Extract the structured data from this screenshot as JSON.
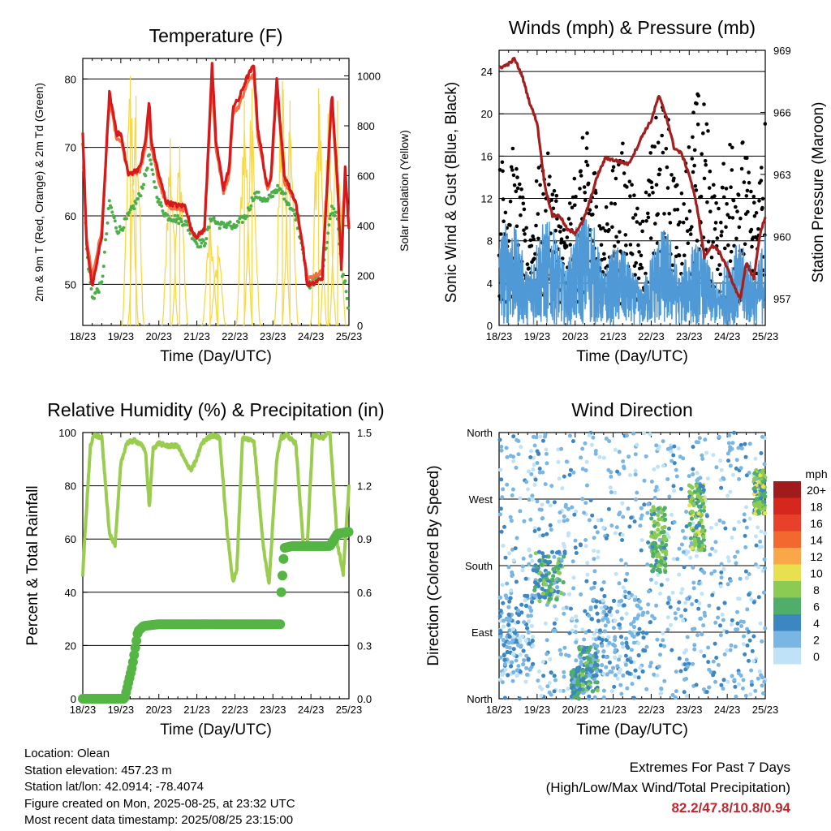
{
  "colors": {
    "temp_red": "#d7191c",
    "temp_orange": "#f46d43",
    "dewpoint_green": "#4daf4a",
    "solar_yellow": "#f7d84a",
    "wind_blue": "#4f9ad6",
    "pressure_maroon": "#a31f1f",
    "rh_green": "#9acd4f",
    "precip_green": "#55b544",
    "extremes_red": "#c0272d"
  },
  "x_ticks": [
    "18/23",
    "19/23",
    "20/23",
    "21/23",
    "22/23",
    "23/23",
    "24/23",
    "25/23"
  ],
  "panels": {
    "temperature": {
      "title": "Temperature (F)",
      "xlabel": "Time (Day/UTC)",
      "ylabel_left": "2m & 9m T (Red, Orange) & 2m Td (Green)",
      "ylabel_right": "Solar Insolation (Yellow)",
      "left_ticks": [
        "50",
        "60",
        "70",
        "80"
      ],
      "right_ticks": [
        "0",
        "200",
        "400",
        "600",
        "800",
        "1000"
      ]
    },
    "winds": {
      "title": "Winds (mph) & Pressure (mb)",
      "xlabel": "Time (Day/UTC)",
      "ylabel_left": "Sonic Wind & Gust (Blue, Black)",
      "ylabel_right": "Station Pressure (Maroon)",
      "left_ticks": [
        "0",
        "4",
        "8",
        "12",
        "16",
        "20",
        "24"
      ],
      "right_ticks": [
        "957",
        "960",
        "963",
        "966",
        "969"
      ]
    },
    "humidity": {
      "title": "Relative Humidity (%) & Precipitation (in)",
      "xlabel": "Time (Day/UTC)",
      "ylabel_left": "Percent & Total Rainfall",
      "left_ticks": [
        "0",
        "20",
        "40",
        "60",
        "80",
        "100"
      ],
      "right_ticks": [
        "0.0",
        "0.3",
        "0.6",
        "0.9",
        "1.2",
        "1.5"
      ]
    },
    "direction": {
      "title": "Wind Direction",
      "xlabel": "Time (Day/UTC)",
      "ylabel_left": "Direction (Colored By Speed)",
      "left_ticks": [
        "North",
        "East",
        "South",
        "West",
        "North"
      ],
      "legend_title": "mph",
      "legend_labels": [
        "20+",
        "18",
        "16",
        "14",
        "12",
        "10",
        "8",
        "6",
        "4",
        "2",
        "0"
      ],
      "legend_colors": [
        "#a11a1c",
        "#d7261e",
        "#e8402a",
        "#f2682f",
        "#f9a748",
        "#e9e04f",
        "#8ccb53",
        "#4fae6a",
        "#3c86c1",
        "#7ab6e3",
        "#bfe2f6"
      ]
    }
  },
  "info": {
    "location": "Location: Olean",
    "elevation": "Station elevation: 457.23 m",
    "latlon": "Station lat/lon: 42.0914; -78.4074",
    "created": "Figure created on Mon, 2025-08-25, at 23:32 UTC",
    "recent": "Most recent data timestamp: 2025/08/25 23:15:00"
  },
  "extremes": {
    "title": "Extremes For Past 7 Days",
    "subtitle": "(High/Low/Max Wind/Total Precipitation)",
    "values": "82.2/47.8/10.8/0.94"
  },
  "chart_data": [
    {
      "type": "line",
      "title": "Temperature (F)",
      "xlabel": "Time (Day/UTC)",
      "x": [
        0,
        0.1,
        0.25,
        0.5,
        0.7,
        0.9,
        1.0,
        1.2,
        1.5,
        1.65,
        1.75,
        1.8,
        2.0,
        2.2,
        2.5,
        2.7,
        2.85,
        3.0,
        3.2,
        3.4,
        3.5,
        3.7,
        3.85,
        3.95,
        4.1,
        4.3,
        4.5,
        4.6,
        4.85,
        4.95,
        5.1,
        5.3,
        5.6,
        5.8,
        5.9,
        6.05,
        6.3,
        6.55,
        6.7,
        6.8,
        6.9,
        7.0
      ],
      "ylim": [
        44,
        83
      ],
      "series": [
        {
          "name": "2m T",
          "values": [
            72,
            56,
            49.5,
            57,
            78,
            72,
            72,
            66,
            67,
            71,
            77,
            71,
            66,
            62,
            61.5,
            61.5,
            58,
            57,
            58,
            82,
            71,
            64,
            67,
            76,
            77,
            80,
            82,
            73,
            64,
            66,
            80,
            66,
            62,
            55,
            50,
            50,
            51,
            78,
            65,
            52,
            67,
            58
          ]
        },
        {
          "name": "9m T",
          "values": [
            71,
            57,
            51,
            58,
            77,
            71,
            71,
            66,
            66.5,
            70,
            76,
            70,
            65,
            61.5,
            61,
            61,
            57.5,
            57,
            58,
            80,
            70,
            63.5,
            66,
            75,
            76,
            79,
            81,
            72,
            64,
            65,
            79,
            65,
            62,
            55,
            51,
            51,
            52,
            77,
            64,
            53,
            66,
            58
          ]
        },
        {
          "name": "2m Td",
          "values": [
            71,
            55,
            48,
            50,
            62,
            58,
            58,
            60,
            63,
            66,
            69,
            67,
            62,
            60,
            59.5,
            59,
            57.5,
            56,
            56,
            60,
            59,
            58.5,
            59,
            58,
            59,
            60,
            63,
            63,
            62,
            63,
            64,
            63,
            60,
            55,
            50,
            50,
            52,
            61,
            60,
            52,
            50,
            45
          ]
        }
      ],
      "solar_peaks": [
        {
          "x": 1.25,
          "w": 1000
        },
        {
          "x": 1.4,
          "w": 920
        },
        {
          "x": 2.3,
          "w": 750
        },
        {
          "x": 2.55,
          "w": 720
        },
        {
          "x": 3.35,
          "w": 420
        },
        {
          "x": 3.55,
          "w": 320
        },
        {
          "x": 4.25,
          "w": 900
        },
        {
          "x": 4.45,
          "w": 950
        },
        {
          "x": 5.25,
          "w": 980
        },
        {
          "x": 5.45,
          "w": 900
        },
        {
          "x": 6.2,
          "w": 950
        },
        {
          "x": 6.45,
          "w": 850
        },
        {
          "x": 6.7,
          "w": 900
        }
      ]
    },
    {
      "type": "scatter",
      "title": "Winds (mph) & Pressure (mb)",
      "xlabel": "Time (Day/UTC)",
      "ylim": [
        0,
        26
      ],
      "y2lim": [
        955.7,
        969
      ],
      "series": [
        {
          "name": "Pressure",
          "x": [
            0,
            0.1,
            0.3,
            0.4,
            0.6,
            0.8,
            1.0,
            1.2,
            1.4,
            1.6,
            1.8,
            2.0,
            2.2,
            2.35,
            2.6,
            2.8,
            3.0,
            3.2,
            3.4,
            3.6,
            3.8,
            4.0,
            4.2,
            4.4,
            4.6,
            4.8,
            5.0,
            5.2,
            5.4,
            5.6,
            5.8,
            6.0,
            6.2,
            6.35,
            6.5,
            6.7,
            6.85,
            7.0
          ],
          "values": [
            968.2,
            968.2,
            968.4,
            968.6,
            967.8,
            966.5,
            965.5,
            962.5,
            961.0,
            961.0,
            960.3,
            960.2,
            960.7,
            961.5,
            963.0,
            963.8,
            963.7,
            963.6,
            963.5,
            964.2,
            965.0,
            965.6,
            966.8,
            965.8,
            964.3,
            964.0,
            963.0,
            961.5,
            959.0,
            959.6,
            959.2,
            958.5,
            957.5,
            957.0,
            958.7,
            958.0,
            960.0,
            961.0
          ]
        },
        {
          "name": "Wind daily max",
          "x": [
            0.5,
            1.5,
            2.5,
            3.5,
            4.5,
            5.5,
            6.5,
            7.0
          ],
          "values": [
            10,
            10,
            11,
            6,
            10,
            7,
            8,
            11
          ]
        },
        {
          "name": "Gust daily max",
          "x": [
            0.5,
            1.5,
            2.5,
            3.5,
            4.5,
            5.5,
            6.5,
            7.0
          ],
          "values": [
            15.5,
            14,
            17,
            15,
            20.5,
            20.5,
            17,
            24.5
          ]
        }
      ]
    },
    {
      "type": "line",
      "title": "Relative Humidity (%) & Precipitation (in)",
      "xlabel": "Time (Day/UTC)",
      "ylim": [
        0,
        100
      ],
      "y2lim": [
        0,
        1.5
      ],
      "series": [
        {
          "name": "RH",
          "x": [
            0,
            0.05,
            0.2,
            0.3,
            0.5,
            0.7,
            0.85,
            1.0,
            1.15,
            1.35,
            1.5,
            1.65,
            1.75,
            1.85,
            2.0,
            2.2,
            2.5,
            2.7,
            2.85,
            3.0,
            3.1,
            3.2,
            3.4,
            3.6,
            3.8,
            3.95,
            4.05,
            4.2,
            4.5,
            4.75,
            4.9,
            5.1,
            5.2,
            5.35,
            5.6,
            5.8,
            5.9,
            6.05,
            6.3,
            6.5,
            6.7,
            6.85,
            7.0
          ],
          "values": [
            46,
            60,
            95,
            99,
            98,
            62,
            58,
            88,
            96,
            97,
            96,
            93,
            72,
            94,
            96,
            95,
            95,
            89,
            86,
            90,
            95,
            97,
            99,
            98,
            62,
            44,
            48,
            98,
            97,
            57,
            43,
            90,
            98,
            99,
            96,
            58,
            57,
            99,
            98,
            100,
            58,
            47,
            80
          ]
        },
        {
          "name": "Precipitation",
          "x": [
            0,
            1.1,
            1.3,
            1.45,
            1.6,
            2.0,
            3.0,
            4.0,
            5.2,
            5.22,
            5.3,
            5.5,
            6.0,
            6.5,
            6.7,
            7.0
          ],
          "values": [
            0,
            0,
            0.18,
            0.38,
            0.41,
            0.42,
            0.42,
            0.42,
            0.42,
            0.6,
            0.85,
            0.86,
            0.86,
            0.86,
            0.93,
            0.94
          ]
        }
      ]
    },
    {
      "type": "scatter",
      "title": "Wind Direction",
      "xlabel": "Time (Day/UTC)",
      "y_categories": [
        "North",
        "East",
        "South",
        "West",
        "North"
      ],
      "clusters": [
        {
          "x": [
            0.0,
            0.9
          ],
          "dir": [
            30,
            140
          ],
          "speed": [
            0,
            5
          ]
        },
        {
          "x": [
            0.9,
            1.7
          ],
          "dir": [
            130,
            200
          ],
          "speed": [
            2,
            8
          ]
        },
        {
          "x": [
            1.9,
            2.1
          ],
          "dir": [
            0,
            40
          ],
          "speed": [
            2,
            7
          ]
        },
        {
          "x": [
            2.1,
            2.6
          ],
          "dir": [
            10,
            70
          ],
          "speed": [
            2,
            8
          ]
        },
        {
          "x": [
            2.4,
            3.8
          ],
          "dir": [
            30,
            140
          ],
          "speed": [
            0,
            5
          ]
        },
        {
          "x": [
            4.0,
            4.4
          ],
          "dir": [
            170,
            260
          ],
          "speed": [
            4,
            9
          ]
        },
        {
          "x": [
            5.0,
            5.4
          ],
          "dir": [
            200,
            290
          ],
          "speed": [
            4,
            10
          ]
        },
        {
          "x": [
            6.7,
            7.0
          ],
          "dir": [
            250,
            310
          ],
          "speed": [
            4,
            10
          ]
        }
      ]
    }
  ]
}
